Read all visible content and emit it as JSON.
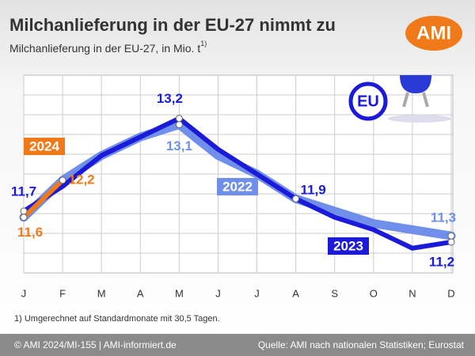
{
  "chart_data": {
    "type": "line",
    "title": "Milchanlieferung in der EU-27 nimmt zu",
    "subtitle": "Milchanlieferung in der EU-27, in Mio. t",
    "subtitle_note": "1)",
    "logo": "AMI",
    "badge": "EU",
    "categories": [
      "J",
      "F",
      "M",
      "A",
      "M",
      "J",
      "J",
      "A",
      "S",
      "O",
      "N",
      "D"
    ],
    "series": [
      {
        "name": "2022",
        "color": "#6f8fea",
        "values": [
          11.6,
          12.2,
          12.6,
          12.9,
          13.1,
          12.6,
          12.3,
          11.9,
          11.7,
          11.5,
          11.4,
          11.3
        ],
        "value_labels": [
          null,
          null,
          null,
          null,
          "13,1",
          null,
          null,
          null,
          null,
          null,
          null,
          "11,3"
        ]
      },
      {
        "name": "2023",
        "color": "#1a1ad8",
        "values": [
          11.7,
          12.1,
          12.6,
          12.9,
          13.2,
          12.7,
          12.3,
          11.9,
          11.6,
          11.4,
          11.1,
          11.2
        ],
        "value_labels": [
          "11,7",
          null,
          null,
          null,
          "13,2",
          null,
          null,
          "11,9",
          null,
          null,
          null,
          "11,2"
        ]
      },
      {
        "name": "2024",
        "color": "#f07a1a",
        "values": [
          11.6,
          12.2,
          null,
          null,
          null,
          null,
          null,
          null,
          null,
          null,
          null,
          null
        ],
        "value_labels": [
          "11,6",
          "12,2",
          null,
          null,
          null,
          null,
          null,
          null,
          null,
          null,
          null,
          null
        ]
      }
    ],
    "ylim": [
      10.7,
      13.9
    ],
    "grid": true,
    "footnote": "1) Umgerechnet auf Standardmonate mit 30,5 Tagen.",
    "footer_left": "© AMI 2024/MI-155 | AMI-informiert.de",
    "footer_right": "Quelle: AMI nach nationalen Statistiken; Eurostat"
  }
}
